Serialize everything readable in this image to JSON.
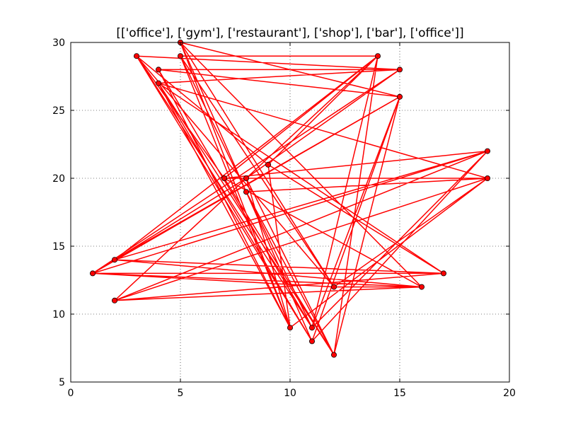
{
  "chart_data": {
    "type": "line",
    "title": "[['office'], ['gym'], ['restaurant'], ['shop'], ['bar'], ['office']]",
    "xlabel": "",
    "ylabel": "",
    "xlim": [
      0,
      20
    ],
    "ylim": [
      5,
      30
    ],
    "x_ticks": [
      0,
      5,
      10,
      15,
      20
    ],
    "y_ticks": [
      5,
      10,
      15,
      20,
      25,
      30
    ],
    "grid": true,
    "grid_style": "dotted",
    "line_color": "#ff0000",
    "marker_color": "#ff0000",
    "marker_edge_color": "#000000",
    "marker": "circle",
    "points": [
      [
        5,
        30
      ],
      [
        15,
        26
      ],
      [
        4,
        28
      ],
      [
        15,
        28
      ],
      [
        3,
        29
      ],
      [
        12,
        12
      ],
      [
        5,
        29
      ],
      [
        11,
        9
      ],
      [
        14,
        29
      ],
      [
        2,
        11
      ],
      [
        17,
        13
      ],
      [
        1,
        13
      ],
      [
        16,
        12
      ],
      [
        2,
        14
      ],
      [
        19,
        22
      ],
      [
        7,
        20
      ],
      [
        19,
        20
      ],
      [
        4,
        27
      ],
      [
        11,
        8
      ],
      [
        8,
        19
      ],
      [
        12,
        7
      ],
      [
        15,
        26
      ],
      [
        2,
        14
      ],
      [
        14,
        29
      ],
      [
        9,
        21
      ],
      [
        10,
        9
      ],
      [
        5,
        30
      ],
      [
        12,
        12
      ],
      [
        1,
        13
      ],
      [
        17,
        13
      ],
      [
        4,
        27
      ],
      [
        10,
        9
      ],
      [
        19,
        20
      ],
      [
        2,
        11
      ],
      [
        16,
        12
      ],
      [
        7,
        20
      ],
      [
        3,
        29
      ],
      [
        11,
        8
      ],
      [
        19,
        22
      ],
      [
        1,
        13
      ],
      [
        15,
        28
      ],
      [
        8,
        20
      ],
      [
        12,
        7
      ],
      [
        14,
        29
      ],
      [
        5,
        29
      ],
      [
        10,
        9
      ],
      [
        4,
        28
      ],
      [
        11,
        9
      ],
      [
        15,
        26
      ],
      [
        1,
        13
      ],
      [
        12,
        12
      ],
      [
        19,
        20
      ],
      [
        8,
        19
      ],
      [
        5,
        30
      ],
      [
        16,
        12
      ],
      [
        2,
        14
      ],
      [
        17,
        13
      ],
      [
        9,
        21
      ],
      [
        3,
        29
      ],
      [
        11,
        9
      ],
      [
        19,
        22
      ],
      [
        2,
        11
      ],
      [
        14,
        29
      ],
      [
        7,
        20
      ],
      [
        12,
        7
      ],
      [
        4,
        27
      ],
      [
        15,
        28
      ],
      [
        1,
        13
      ],
      [
        8,
        20
      ],
      [
        10,
        9
      ],
      [
        5,
        29
      ],
      [
        12,
        12
      ],
      [
        16,
        12
      ],
      [
        2,
        14
      ],
      [
        15,
        26
      ],
      [
        11,
        8
      ],
      [
        5,
        30
      ]
    ]
  }
}
